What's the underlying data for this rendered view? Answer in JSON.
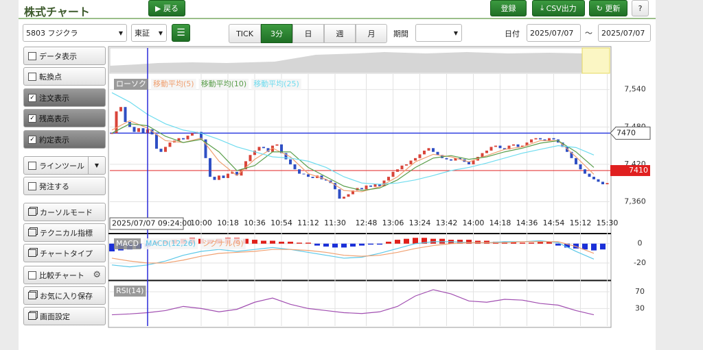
{
  "header": {
    "title": "株式チャート",
    "back": "戻る",
    "register": "登録",
    "csv": "CSV出力",
    "refresh": "更新",
    "help": "?"
  },
  "toolbar": {
    "symbol": "5803 フジクラ",
    "market": "東証",
    "intervals": [
      "TICK",
      "3分",
      "日",
      "週",
      "月"
    ],
    "selected_interval": 1,
    "period_label": "期間",
    "date_label": "日付",
    "date_from": "2025/07/07",
    "separator": "～",
    "date_to": "2025/07/07"
  },
  "sidebar": [
    {
      "label": "データ表示",
      "checked": false
    },
    {
      "label": "転換点",
      "checked": false
    },
    {
      "label": "注文表示",
      "checked": true
    },
    {
      "label": "残高表示",
      "checked": true
    },
    {
      "label": "約定表示",
      "checked": true
    },
    {
      "label": "ラインツール",
      "checked": false
    },
    {
      "label": "発注する",
      "checked": false
    },
    {
      "label": "カーソルモード"
    },
    {
      "label": "テクニカル指標"
    },
    {
      "label": "チャートタイプ"
    },
    {
      "label": "比較チャート",
      "checked": false
    },
    {
      "label": "お気に入り保存"
    },
    {
      "label": "画面設定"
    }
  ],
  "chart": {
    "type": "candlestick",
    "legend": [
      "ローソク"
    ],
    "up_color": "#d9453a",
    "down_color": "#2f4fc4",
    "close": [
      7470,
      7505,
      7512,
      7488,
      7480,
      7472,
      7478,
      7470,
      7476,
      7468,
      7445,
      7440,
      7448,
      7455,
      7458,
      7462,
      7460,
      7466,
      7470,
      7472,
      7460,
      7430,
      7400,
      7395,
      7402,
      7398,
      7405,
      7408,
      7402,
      7412,
      7425,
      7435,
      7442,
      7448,
      7446,
      7440,
      7450,
      7452,
      7438,
      7428,
      7420,
      7412,
      7405,
      7404,
      7400,
      7398,
      7402,
      7396,
      7394,
      7390,
      7380,
      7365,
      7368,
      7372,
      7378,
      7382,
      7380,
      7386,
      7384,
      7388,
      7385,
      7394,
      7400,
      7408,
      7412,
      7418,
      7420,
      7426,
      7430,
      7436,
      7442,
      7446,
      7440,
      7435,
      7430,
      7428,
      7426,
      7430,
      7428,
      7424,
      7420,
      7426,
      7432,
      7438,
      7442,
      7448,
      7450,
      7446,
      7444,
      7450,
      7452,
      7448,
      7450,
      7455,
      7460,
      7462,
      7460,
      7458,
      7462,
      7460,
      7455,
      7448,
      7440,
      7430,
      7420,
      7412,
      7405,
      7400,
      7396,
      7392,
      7388,
      7390
    ],
    "ylim": [
      7310,
      7565
    ],
    "yticks": [
      {
        "value": 7360,
        "label": "7,360"
      },
      {
        "value": 7420,
        "label": "7,420"
      },
      {
        "value": 7480,
        "label": "7,480"
      },
      {
        "value": 7540,
        "label": "7,540"
      }
    ],
    "time_ticks": [
      {
        "index": 20,
        "label": "10:00"
      },
      {
        "index": 26,
        "label": "10:18"
      },
      {
        "index": 32,
        "label": "10:36"
      },
      {
        "index": 38,
        "label": "10:54"
      },
      {
        "index": 44,
        "label": "11:12"
      },
      {
        "index": 50,
        "label": "11:30"
      },
      {
        "index": 57,
        "label": "12:48"
      },
      {
        "index": 63,
        "label": "13:06"
      },
      {
        "index": 69,
        "label": "13:24"
      },
      {
        "index": 75,
        "label": "13:42"
      },
      {
        "index": 81,
        "label": "14:00"
      },
      {
        "index": 87,
        "label": "14:18"
      },
      {
        "index": 93,
        "label": "14:36"
      },
      {
        "index": 99,
        "label": "14:54"
      },
      {
        "index": 105,
        "label": "15:12"
      },
      {
        "index": 111,
        "label": "15:30"
      }
    ],
    "crosshair": {
      "index": 8,
      "label": "2025/07/07 09:24:00"
    },
    "levels": [
      {
        "value": 7470,
        "color": "#2f3fe0",
        "filled": false
      },
      {
        "value": 7410,
        "color": "#e02020",
        "filled": true
      }
    ],
    "sample_index": [
      0,
      4,
      8,
      12,
      16,
      20,
      24,
      28,
      32,
      36,
      40,
      44,
      48,
      52,
      56,
      60,
      64,
      68,
      72,
      76,
      80,
      84,
      88,
      92,
      96,
      100,
      104,
      108
    ],
    "series": [
      {
        "name": "移動平均(5)",
        "color": "#f0a070",
        "values": [
          7475,
          7490,
          7478,
          7458,
          7455,
          7462,
          7425,
          7402,
          7428,
          7446,
          7432,
          7405,
          7396,
          7378,
          7376,
          7384,
          7400,
          7424,
          7436,
          7432,
          7424,
          7434,
          7444,
          7448,
          7458,
          7458,
          7432,
          7404
        ]
      },
      {
        "name": "移動平均(10)",
        "color": "#5a9e4b",
        "values": [
          7470,
          7485,
          7482,
          7465,
          7455,
          7460,
          7440,
          7410,
          7418,
          7440,
          7440,
          7415,
          7400,
          7385,
          7378,
          7382,
          7395,
          7415,
          7430,
          7434,
          7428,
          7432,
          7440,
          7446,
          7454,
          7458,
          7440,
          7415
        ]
      },
      {
        "name": "移動平均(25)",
        "color": "#6fdcef",
        "values": [
          7535,
          7520,
          7500,
          7485,
          7475,
          7470,
          7460,
          7448,
          7440,
          7432,
          7430,
          7425,
          7415,
          7400,
          7390,
          7388,
          7390,
          7395,
          7402,
          7410,
          7415,
          7422,
          7430,
          7438,
          7444,
          7450,
          7447,
          7435
        ]
      }
    ],
    "macd": {
      "legend": "MACD",
      "ylim": [
        -37,
        9
      ],
      "yticks": [
        -20,
        0
      ],
      "hist_x": [
        0,
        2,
        4,
        6,
        8,
        10,
        12,
        14,
        16,
        18,
        20,
        22,
        24,
        26,
        28,
        30,
        32,
        34,
        36,
        38,
        40,
        42,
        44,
        46,
        48,
        50,
        52,
        54,
        56,
        58,
        60,
        62,
        64,
        66,
        68,
        70,
        72,
        74,
        76,
        78,
        80,
        82,
        84,
        86,
        88,
        90,
        92,
        94,
        96,
        98,
        100,
        102,
        104,
        106,
        108,
        110
      ],
      "hist": [
        -8,
        -7,
        -6,
        -5,
        -3,
        2,
        3,
        4,
        5,
        6,
        5,
        4,
        5,
        6,
        6,
        5,
        4,
        3,
        3,
        2,
        2,
        1,
        1,
        -2,
        -3,
        -4,
        -4,
        -3,
        -2,
        -1,
        -1,
        2,
        4,
        5,
        6,
        6,
        5,
        5,
        4,
        4,
        4,
        3,
        3,
        2,
        2,
        2,
        1,
        1,
        2,
        2,
        -2,
        -4,
        -5,
        -6,
        -7,
        -6
      ],
      "series": [
        {
          "name": "MACD(12,26)",
          "color": "#5bc8e8",
          "values": [
            -22,
            -24,
            -22,
            -18,
            -12,
            -8,
            -6,
            -8,
            -6,
            -4,
            -6,
            -9,
            -12,
            -15,
            -14,
            -10,
            -5,
            0,
            2,
            2,
            1,
            1,
            2,
            2,
            3,
            1,
            -8,
            -16
          ]
        },
        {
          "name": "シグナル(9)",
          "color": "#f0a070",
          "values": [
            -15,
            -18,
            -20,
            -20,
            -17,
            -13,
            -10,
            -9,
            -8,
            -6,
            -6,
            -7,
            -9,
            -12,
            -13,
            -12,
            -9,
            -5,
            -2,
            0,
            1,
            1,
            1,
            2,
            2,
            2,
            -3,
            -10
          ]
        }
      ]
    },
    "rsi": {
      "name": "RSI(14)",
      "color": "#a04db0",
      "ylim": [
        -12,
        93
      ],
      "yticks": [
        30,
        70
      ],
      "values": [
        15,
        17,
        20,
        25,
        35,
        30,
        22,
        28,
        45,
        55,
        40,
        30,
        25,
        20,
        18,
        22,
        35,
        60,
        75,
        65,
        48,
        45,
        52,
        50,
        42,
        38,
        25,
        15
      ]
    }
  }
}
